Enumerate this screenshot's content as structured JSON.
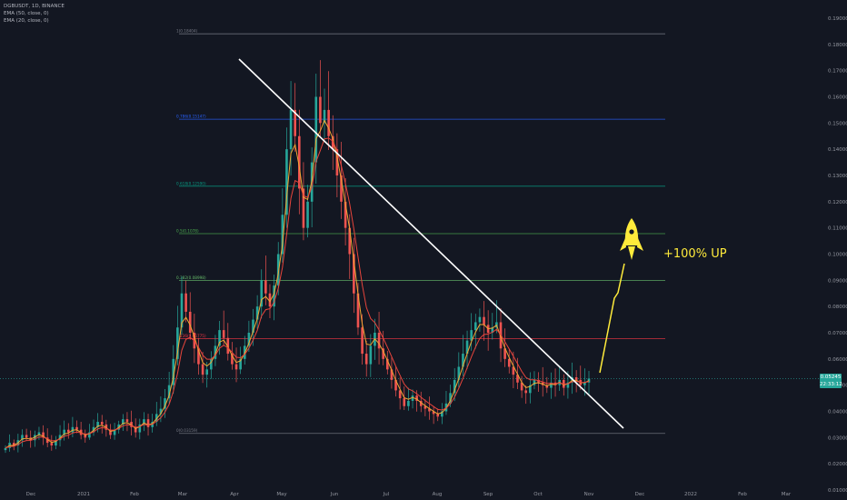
{
  "legend": {
    "symbol": "DGBUSDT, 1D, BINANCE",
    "ema50": "EMA (50, close, 0)",
    "ema20": "EMA (20, close, 0)"
  },
  "price_badge": {
    "price": "0.05245",
    "countdown": "22:33:12"
  },
  "annotation": {
    "text": "+100% UP",
    "icon": "rocket-icon"
  },
  "colors": {
    "background": "#131722",
    "up_candle": "#26a69a",
    "down_candle": "#ef5350",
    "ema20": "#f0a734",
    "ema50": "#e8453c",
    "trendline": "#ffffff",
    "projection": "#ffeb3b"
  },
  "chart_data": {
    "type": "candlestick",
    "y_axis": {
      "ticks": [
        0.19,
        0.18,
        0.17,
        0.16,
        0.15,
        0.14,
        0.13,
        0.12,
        0.11,
        0.1,
        0.09,
        0.08,
        0.07,
        0.06,
        0.05,
        0.04,
        0.03,
        0.02,
        0.01
      ],
      "tick_labels": [
        "0.19000",
        "0.18000",
        "0.17000",
        "0.16000",
        "0.15000",
        "0.14000",
        "0.13000",
        "0.12000",
        "0.11000",
        "0.10000",
        "0.09000",
        "0.08000",
        "0.07000",
        "0.06000",
        "0.05000",
        "0.04000",
        "0.03000",
        "0.02000",
        "0.01000"
      ]
    },
    "x_axis": {
      "tick_labels": [
        "Dec",
        "2021",
        "Feb",
        "Mar",
        "Apr",
        "May",
        "Jun",
        "Jul",
        "Aug",
        "Sep",
        "Oct",
        "Nov",
        "Dec",
        "2022",
        "Feb",
        "Mar"
      ]
    },
    "fib_levels": [
      {
        "label": "1(0.18404)",
        "value": 0.18404,
        "color": "#787b86"
      },
      {
        "label": "0.786(0.15147)",
        "value": 0.15147,
        "color": "#2962ff"
      },
      {
        "label": "0.618(0.12590)",
        "value": 0.1259,
        "color": "#089981"
      },
      {
        "label": "0.5(0.1078)",
        "value": 0.1078,
        "color": "#4caf50"
      },
      {
        "label": "0.382(0.08998)",
        "value": 0.08998,
        "color": "#66bb6a"
      },
      {
        "label": "0.236(0.06775)",
        "value": 0.06775,
        "color": "#f23645"
      },
      {
        "label": "0(0.03159)",
        "value": 0.03159,
        "color": "#787b86"
      }
    ],
    "current_price": 0.05245,
    "closes": [
      0.026,
      0.028,
      0.027,
      0.029,
      0.031,
      0.03,
      0.029,
      0.031,
      0.032,
      0.03,
      0.028,
      0.027,
      0.029,
      0.031,
      0.033,
      0.032,
      0.034,
      0.033,
      0.031,
      0.03,
      0.032,
      0.034,
      0.036,
      0.035,
      0.033,
      0.031,
      0.033,
      0.035,
      0.037,
      0.036,
      0.034,
      0.032,
      0.035,
      0.037,
      0.034,
      0.036,
      0.039,
      0.041,
      0.045,
      0.05,
      0.06,
      0.072,
      0.085,
      0.078,
      0.07,
      0.064,
      0.058,
      0.054,
      0.056,
      0.06,
      0.065,
      0.071,
      0.068,
      0.062,
      0.058,
      0.056,
      0.06,
      0.065,
      0.07,
      0.075,
      0.08,
      0.09,
      0.085,
      0.08,
      0.088,
      0.1,
      0.115,
      0.14,
      0.155,
      0.145,
      0.125,
      0.11,
      0.12,
      0.135,
      0.16,
      0.15,
      0.155,
      0.145,
      0.14,
      0.13,
      0.12,
      0.11,
      0.1,
      0.085,
      0.072,
      0.062,
      0.058,
      0.065,
      0.07,
      0.064,
      0.06,
      0.056,
      0.052,
      0.048,
      0.045,
      0.042,
      0.044,
      0.046,
      0.044,
      0.042,
      0.041,
      0.04,
      0.039,
      0.038,
      0.04,
      0.043,
      0.047,
      0.052,
      0.057,
      0.062,
      0.067,
      0.071,
      0.074,
      0.076,
      0.073,
      0.07,
      0.072,
      0.074,
      0.064,
      0.06,
      0.057,
      0.054,
      0.051,
      0.048,
      0.047,
      0.05,
      0.052,
      0.051,
      0.05,
      0.049,
      0.051,
      0.05,
      0.052,
      0.049,
      0.051,
      0.053,
      0.052,
      0.05,
      0.051,
      0.0525
    ]
  }
}
